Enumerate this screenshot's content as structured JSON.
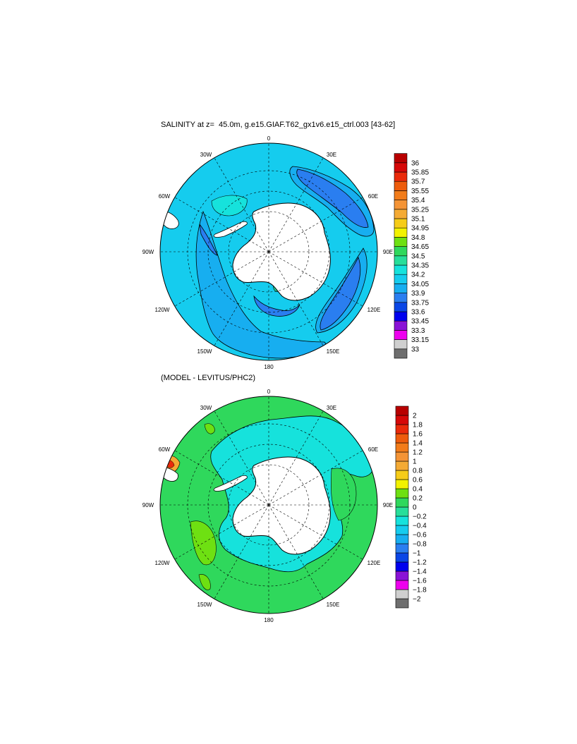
{
  "panel1": {
    "title": "SALINITY at z=  45.0m, g.e15.GIAF.T62_gx1v6.e15_ctrl.003 [43-62]",
    "lon_labels": {
      "n": "0",
      "ne": "30E",
      "e1": "60E",
      "e": "90E",
      "se1": "120E",
      "se": "150E",
      "s": "180",
      "sw": "150W",
      "sw1": "120W",
      "w": "90W",
      "nw1": "60W",
      "nw": "30W"
    },
    "colorbar": {
      "colors": [
        "#6e6e6e",
        "#cfcfcf",
        "#ee00ee",
        "#8a12d6",
        "#0000ee",
        "#0a46e6",
        "#2a7ef0",
        "#17aef0",
        "#15ccee",
        "#16e2dc",
        "#27de9a",
        "#2fd85c",
        "#6ee012",
        "#f2f200",
        "#f6cc18",
        "#f4aa34",
        "#f49436",
        "#f27c1a",
        "#ee5c0c",
        "#ea2a0a",
        "#d60808",
        "#b80000"
      ],
      "labels": [
        "33",
        "33.15",
        "33.3",
        "33.45",
        "33.6",
        "33.75",
        "33.9",
        "34.05",
        "34.2",
        "34.35",
        "34.5",
        "34.65",
        "34.8",
        "34.95",
        "35.1",
        "35.25",
        "35.4",
        "35.55",
        "35.7",
        "35.85",
        "36"
      ]
    }
  },
  "panel2": {
    "title": "(MODEL - LEVITUS/PHC2)",
    "lon_labels": {
      "n": "0",
      "ne": "30E",
      "e1": "60E",
      "e": "90E",
      "se1": "120E",
      "se": "150E",
      "s": "180",
      "sw": "150W",
      "sw1": "120W",
      "w": "90W",
      "nw1": "60W",
      "nw": "30W"
    },
    "colorbar": {
      "colors": [
        "#6e6e6e",
        "#cfcfcf",
        "#ee00ee",
        "#8a12d6",
        "#0000ee",
        "#0a46e6",
        "#2a7ef0",
        "#17aef0",
        "#15ccee",
        "#16e2dc",
        "#27de9a",
        "#2fd85c",
        "#6ee012",
        "#f2f200",
        "#f6cc18",
        "#f4aa34",
        "#f49436",
        "#f27c1a",
        "#ee5c0c",
        "#ea2a0a",
        "#d60808",
        "#b80000"
      ],
      "labels": [
        "−2",
        "−1.8",
        "−1.6",
        "−1.4",
        "−1.2",
        "−1",
        "−0.8",
        "−0.6",
        "−0.4",
        "−0.2",
        "0",
        "0.2",
        "0.4",
        "0.6",
        "0.8",
        "1",
        "1.2",
        "1.4",
        "1.6",
        "1.8",
        "2"
      ]
    }
  }
}
